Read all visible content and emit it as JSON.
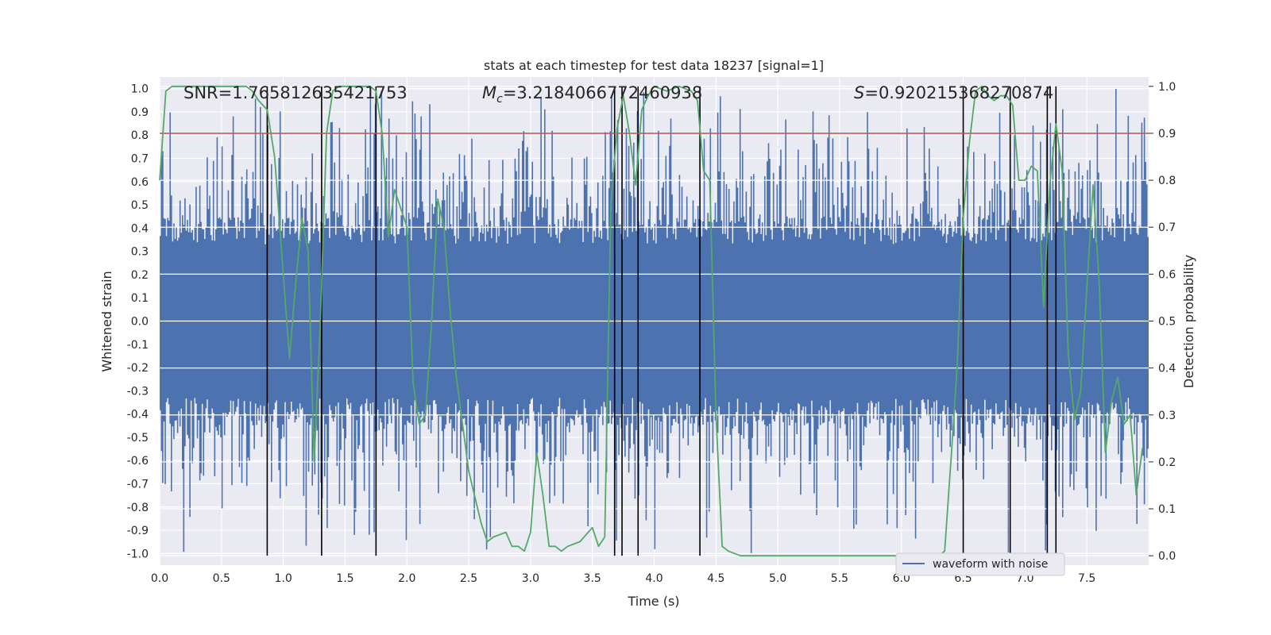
{
  "chart_data": {
    "type": "line",
    "title": "stats at each timestep for test data 18237 [signal=1]",
    "xlabel": "Time (s)",
    "ylabel_left": "Whitened strain",
    "ylabel_right": "Detection probability",
    "xlim": [
      0.0,
      8.0
    ],
    "ylim_left": [
      -1.05,
      1.05
    ],
    "ylim_right": [
      -0.02,
      1.02
    ],
    "grid": true,
    "x_ticks": [
      "0.0",
      "0.5",
      "1.0",
      "1.5",
      "2.0",
      "2.5",
      "3.0",
      "3.5",
      "4.0",
      "4.5",
      "5.0",
      "5.5",
      "6.0",
      "6.5",
      "7.0",
      "7.5"
    ],
    "x_tick_values": [
      0.0,
      0.5,
      1.0,
      1.5,
      2.0,
      2.5,
      3.0,
      3.5,
      4.0,
      4.5,
      5.0,
      5.5,
      6.0,
      6.5,
      7.0,
      7.5
    ],
    "y_left_ticks": [
      "1.0",
      "0.9",
      "0.8",
      "0.7",
      "0.6",
      "0.5",
      "0.4",
      "0.3",
      "0.2",
      "0.1",
      "0.0",
      "-0.1",
      "-0.2",
      "-0.3",
      "-0.4",
      "-0.5",
      "-0.6",
      "-0.7",
      "-0.8",
      "-0.9",
      "-1.0"
    ],
    "y_left_tick_values": [
      1.0,
      0.9,
      0.8,
      0.7,
      0.6,
      0.5,
      0.4,
      0.3,
      0.2,
      0.1,
      0.0,
      -0.1,
      -0.2,
      -0.3,
      -0.4,
      -0.5,
      -0.6,
      -0.7,
      -0.8,
      -0.9,
      -1.0
    ],
    "y_right_ticks": [
      "1.0",
      "0.9",
      "0.8",
      "0.7",
      "0.6",
      "0.5",
      "0.4",
      "0.3",
      "0.2",
      "0.1",
      "0.0"
    ],
    "y_right_tick_values": [
      1.0,
      0.9,
      0.8,
      0.7,
      0.6,
      0.5,
      0.4,
      0.3,
      0.2,
      0.1,
      0.0
    ],
    "annotations": {
      "snr": "SNR=1.765812635421753",
      "mc_prefix": "M",
      "mc_sub": "c",
      "mc_value": "=3.2184066772460938",
      "s_prefix": "S",
      "s_value": "=0.920215368270874"
    },
    "threshold_line": {
      "y_right": 0.9,
      "color": "#c44e52"
    },
    "vertical_lines_x": [
      0.87,
      1.31,
      1.75,
      3.68,
      3.74,
      3.87,
      4.37,
      6.5,
      6.88,
      7.18,
      7.25
    ],
    "waveform": {
      "name": "waveform with noise",
      "color": "#4c72b0",
      "sample_count": 800,
      "seed": 18237,
      "core_amplitude": 0.33,
      "spike_max_positive": 1.0,
      "spike_min_negative": -1.0
    },
    "series": [
      {
        "name": "detection probability",
        "color": "#55a868",
        "x": [
          0.0,
          0.05,
          0.1,
          0.2,
          0.3,
          0.4,
          0.5,
          0.6,
          0.7,
          0.75,
          0.8,
          0.87,
          0.93,
          1.0,
          1.05,
          1.1,
          1.15,
          1.2,
          1.25,
          1.3,
          1.35,
          1.4,
          1.45,
          1.5,
          1.6,
          1.7,
          1.75,
          1.8,
          1.85,
          1.9,
          2.0,
          2.05,
          2.1,
          2.15,
          2.2,
          2.25,
          2.3,
          2.35,
          2.4,
          2.5,
          2.6,
          2.65,
          2.7,
          2.8,
          2.85,
          2.9,
          2.95,
          3.0,
          3.05,
          3.1,
          3.15,
          3.2,
          3.25,
          3.3,
          3.4,
          3.5,
          3.55,
          3.6,
          3.65,
          3.7,
          3.75,
          3.8,
          3.85,
          3.9,
          3.95,
          4.0,
          4.1,
          4.2,
          4.3,
          4.35,
          4.4,
          4.45,
          4.5,
          4.55,
          4.6,
          4.7,
          4.8,
          5.0,
          5.3,
          5.5,
          5.6,
          5.7,
          5.9,
          6.0,
          6.2,
          6.3,
          6.35,
          6.4,
          6.45,
          6.5,
          6.55,
          6.6,
          6.65,
          6.7,
          6.75,
          6.8,
          6.85,
          6.9,
          6.95,
          7.0,
          7.05,
          7.1,
          7.15,
          7.2,
          7.25,
          7.3,
          7.35,
          7.4,
          7.45,
          7.5,
          7.55,
          7.6,
          7.65,
          7.7,
          7.75,
          7.8,
          7.85,
          7.9,
          7.95
        ],
        "y": [
          0.8,
          0.99,
          1.0,
          1.0,
          1.0,
          1.0,
          1.0,
          1.0,
          1.0,
          0.99,
          0.97,
          0.95,
          0.85,
          0.6,
          0.42,
          0.58,
          0.72,
          0.65,
          0.2,
          0.5,
          0.9,
          0.99,
          1.0,
          1.0,
          1.0,
          1.0,
          0.99,
          0.9,
          0.68,
          0.78,
          0.7,
          0.37,
          0.28,
          0.3,
          0.5,
          0.76,
          0.7,
          0.52,
          0.38,
          0.18,
          0.07,
          0.03,
          0.04,
          0.05,
          0.02,
          0.02,
          0.01,
          0.05,
          0.22,
          0.13,
          0.02,
          0.02,
          0.01,
          0.02,
          0.03,
          0.06,
          0.02,
          0.04,
          0.75,
          0.91,
          0.98,
          0.9,
          0.79,
          0.95,
          0.98,
          1.0,
          0.99,
          1.0,
          0.99,
          0.97,
          0.82,
          0.8,
          0.3,
          0.02,
          0.01,
          0.0,
          0.0,
          0.0,
          0.0,
          0.0,
          0.0,
          0.0,
          0.0,
          0.0,
          0.0,
          0.0,
          0.01,
          0.2,
          0.4,
          0.72,
          0.88,
          0.99,
          1.0,
          0.98,
          0.97,
          0.98,
          0.98,
          0.96,
          0.8,
          0.8,
          0.83,
          0.82,
          0.53,
          0.79,
          0.92,
          0.82,
          0.43,
          0.29,
          0.35,
          0.57,
          0.79,
          0.58,
          0.22,
          0.33,
          0.38,
          0.28,
          0.3,
          0.13,
          0.23
        ]
      }
    ],
    "legend": {
      "entries": [
        "waveform with noise"
      ],
      "placement": "lower-right"
    }
  }
}
